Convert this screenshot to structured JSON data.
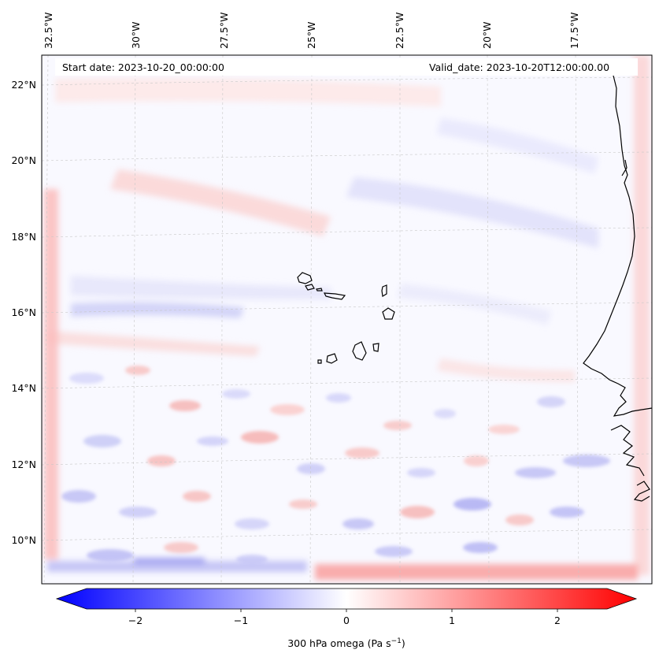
{
  "map": {
    "header": {
      "start_date": "Start date: 2023-10-20_00:00:00",
      "valid_date": "Valid_date: 2023-10-20T12:00:00.00"
    },
    "longitude_labels": [
      "32.5°W",
      "30°W",
      "27.5°W",
      "25°W",
      "22.5°W",
      "20°W",
      "17.5°W"
    ],
    "latitude_labels": [
      "22°N",
      "20°N",
      "18°N",
      "16°N",
      "14°N",
      "12°N",
      "10°N"
    ],
    "field": "300 hPa omega",
    "colorbar": {
      "label_main": "300 hPa omega (Pa s",
      "label_exp": "−1",
      "label_close": ")",
      "ticks": [
        "−2",
        "−1",
        "0",
        "1",
        "2"
      ],
      "range": [
        -2.75,
        2.75
      ],
      "colormap": "bwr",
      "low_color": "#0000ff",
      "mid_color": "#ffffff",
      "high_color": "#ff0000"
    },
    "colors": {
      "coastline": "#000000",
      "gridline": "#c8c8c8"
    }
  }
}
